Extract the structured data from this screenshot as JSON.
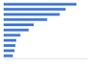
{
  "chart_data": {
    "type": "bar",
    "orientation": "horizontal",
    "categories": [
      null,
      null,
      null,
      null,
      null,
      null,
      null,
      null,
      null,
      null,
      null
    ],
    "values": [
      87,
      74,
      67,
      52,
      36,
      30,
      20,
      15,
      14,
      13,
      11
    ],
    "color": "#3f78d6",
    "xlim": [
      0,
      100
    ],
    "xticks": [
      0,
      100
    ],
    "grid": false,
    "tick_labels": false
  }
}
